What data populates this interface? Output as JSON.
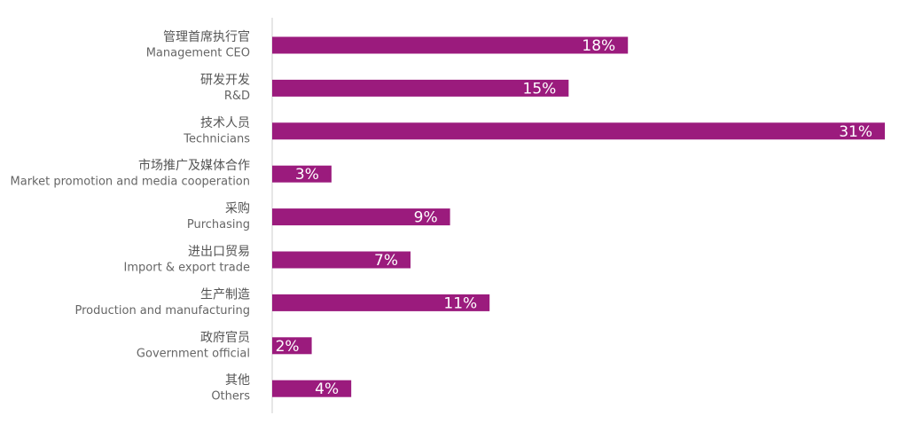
{
  "chart_data": {
    "type": "bar",
    "orientation": "horizontal",
    "color": "#9b1b7d",
    "categories": [
      "管理首席执行官",
      "研发开发",
      "技术人员",
      "市场推广及媒体合作",
      "采购",
      "进出口贸易",
      "生产制造",
      "政府官员",
      "其他"
    ],
    "categories_en": [
      "Management CEO",
      "R&D",
      "Technicians",
      "Market promotion and media cooperation",
      "Purchasing",
      "Import & export trade",
      "Production and manufacturing",
      "Government official",
      "Others"
    ],
    "values": [
      18,
      15,
      31,
      3,
      9,
      7,
      11,
      2,
      4
    ],
    "value_labels": [
      "18%",
      "15%",
      "31%",
      "3%",
      "9%",
      "7%",
      "11%",
      "2%",
      "4%"
    ]
  }
}
